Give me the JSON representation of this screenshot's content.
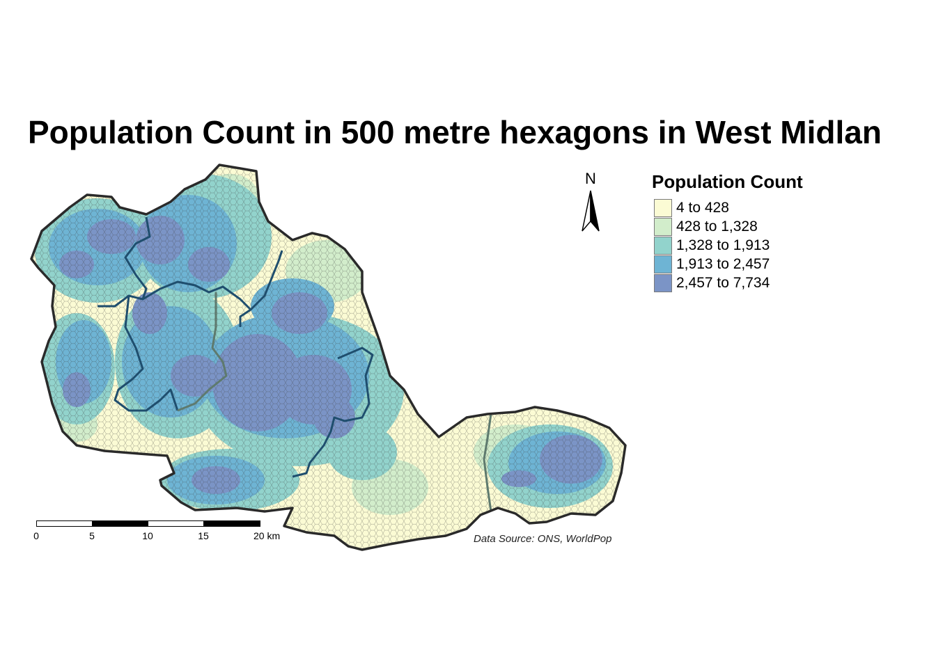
{
  "map": {
    "title": "Population Count in 500 metre hexagons in West Midlan",
    "north_arrow_label": "N",
    "credits": "Data Source: ONS, WorldPop",
    "region_fill_default": "#fbfbd4",
    "boundary_color_outer": "#2a2a2a",
    "boundary_color_inner": "#1f4e6e"
  },
  "legend": {
    "title": "Population Count",
    "classes": [
      {
        "label": "4 to 428",
        "color": "#fbfbd4"
      },
      {
        "label": "428 to 1,328",
        "color": "#d2edcb"
      },
      {
        "label": "1,328 to 1,913",
        "color": "#92d3cc"
      },
      {
        "label": "1,913 to 2,457",
        "color": "#6eb4d4"
      },
      {
        "label": "2,457 to 7,734",
        "color": "#7b94c6"
      }
    ]
  },
  "scalebar": {
    "ticks": [
      "0",
      "5",
      "10",
      "15",
      "20 km"
    ]
  }
}
